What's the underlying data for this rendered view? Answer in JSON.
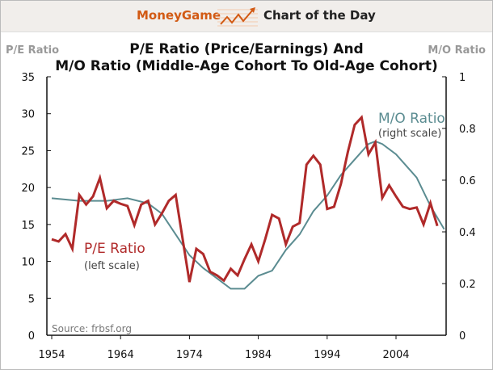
{
  "header": {
    "brand": "MoneyGame",
    "section": "Chart of the Day"
  },
  "chart_data": {
    "type": "line",
    "title": "P/E Ratio (Price/Earnings) And",
    "subtitle": "M/O Ratio (Middle-Age Cohort To Old-Age Cohort)",
    "ylabel_left": "P/E Ratio",
    "ylabel_right": "M/O Ratio",
    "xlim": [
      1954,
      2011
    ],
    "ylim_left": [
      0,
      35
    ],
    "ylim_right": [
      0,
      1
    ],
    "x_ticks": [
      "1954",
      "1964",
      "1974",
      "1984",
      "1994",
      "2004"
    ],
    "y_ticks_left": [
      "0",
      "5",
      "10",
      "15",
      "20",
      "25",
      "30",
      "35"
    ],
    "y_ticks_right": [
      "0",
      "0.2",
      "0.4",
      "0.6",
      "0.8",
      "1"
    ],
    "grid": false,
    "source": "Source: frbsf.org",
    "colors": {
      "pe": "#b02a2a",
      "mo": "#5b8c91"
    },
    "series": [
      {
        "name": "P/E Ratio",
        "annotation": "(left scale)",
        "axis": "left",
        "x": [
          1954,
          1955,
          1956,
          1957,
          1958,
          1959,
          1960,
          1961,
          1962,
          1963,
          1964,
          1965,
          1966,
          1967,
          1968,
          1969,
          1970,
          1971,
          1972,
          1974,
          1975,
          1976,
          1977,
          1978,
          1979,
          1980,
          1981,
          1982,
          1983,
          1984,
          1985,
          1986,
          1987,
          1988,
          1989,
          1990,
          1991,
          1992,
          1993,
          1994,
          1995,
          1996,
          1997,
          1998,
          1999,
          2000,
          2001,
          2002,
          2003,
          2004,
          2005,
          2006,
          2007,
          2008,
          2009,
          2010
        ],
        "values": [
          13.0,
          12.7,
          13.7,
          11.7,
          19.0,
          17.7,
          18.8,
          21.3,
          17.2,
          18.2,
          17.8,
          17.5,
          14.9,
          17.7,
          18.2,
          15.0,
          16.5,
          18.2,
          19.0,
          7.2,
          11.7,
          11.0,
          8.6,
          8.1,
          7.4,
          9.0,
          8.1,
          10.3,
          12.3,
          10.0,
          13.0,
          16.3,
          15.8,
          12.3,
          14.7,
          15.2,
          23.1,
          24.3,
          23.1,
          17.1,
          17.4,
          20.5,
          24.8,
          28.5,
          29.5,
          24.5,
          26.1,
          18.6,
          20.3,
          18.8,
          17.4,
          17.1,
          17.3,
          15.0,
          17.9,
          14.8
        ]
      },
      {
        "name": "M/O Ratio",
        "annotation": "(right scale)",
        "axis": "right",
        "x": [
          1954,
          1958,
          1962,
          1965,
          1968,
          1970,
          1972,
          1974,
          1976,
          1978,
          1980,
          1981,
          1982,
          1984,
          1986,
          1988,
          1990,
          1992,
          1994,
          1996,
          1998,
          2000,
          2001,
          2002,
          2004,
          2006,
          2007,
          2009,
          2011
        ],
        "values": [
          0.53,
          0.52,
          0.52,
          0.53,
          0.51,
          0.47,
          0.39,
          0.31,
          0.26,
          0.22,
          0.18,
          0.18,
          0.18,
          0.23,
          0.25,
          0.33,
          0.39,
          0.48,
          0.54,
          0.62,
          0.68,
          0.74,
          0.75,
          0.74,
          0.7,
          0.64,
          0.61,
          0.5,
          0.41
        ]
      }
    ]
  }
}
